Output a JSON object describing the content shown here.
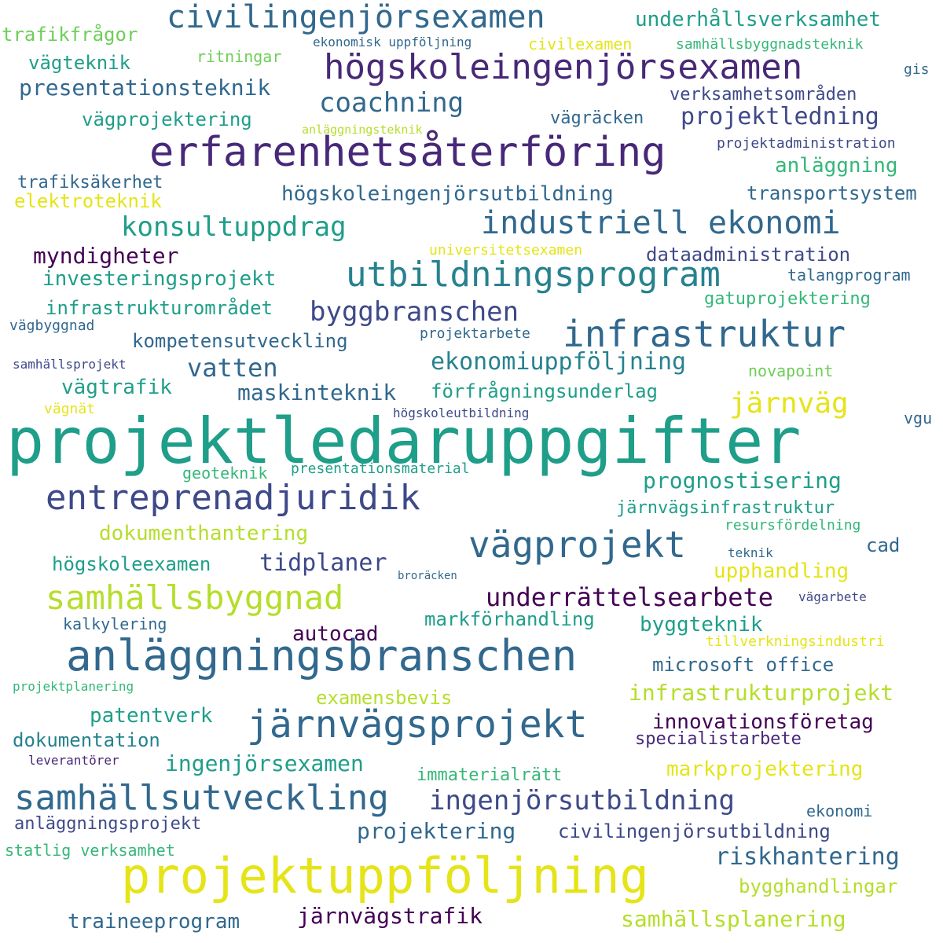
{
  "palette": {
    "dpurple": "#440154",
    "indigo": "#482878",
    "blue": "#3e4989",
    "slate": "#31688e",
    "teal": "#26828e",
    "cyan": "#1f9e89",
    "green": "#35b779",
    "lgreen": "#6ece58",
    "lime": "#b5de2b",
    "yellow": "#e5e419"
  },
  "words": [
    {
      "text": "projektledaruppgifter",
      "color": "cyan"
    },
    {
      "text": "anläggningsbranschen",
      "color": "slate"
    },
    {
      "text": "projektuppföljning",
      "color": "yellow"
    },
    {
      "text": "erfarenhetsåterföring",
      "color": "indigo"
    },
    {
      "text": "utbildningsprogram",
      "color": "teal"
    },
    {
      "text": "järnvägsprojekt",
      "color": "slate"
    },
    {
      "text": "entreprenadjuridik",
      "color": "blue"
    },
    {
      "text": "samhällsutveckling",
      "color": "slate"
    },
    {
      "text": "högskoleingenjörsexamen",
      "color": "indigo"
    },
    {
      "text": "vägprojekt",
      "color": "slate"
    },
    {
      "text": "infrastruktur",
      "color": "slate"
    },
    {
      "text": "industriell ekonomi",
      "color": "slate"
    },
    {
      "text": "samhällsbyggnad",
      "color": "lime"
    },
    {
      "text": "civilingenjörsexamen",
      "color": "slate"
    },
    {
      "text": "byggbranschen",
      "color": "blue"
    },
    {
      "text": "konsultuppdrag",
      "color": "cyan"
    },
    {
      "text": "coachning",
      "color": "slate"
    },
    {
      "text": "ingenjörsutbildning",
      "color": "blue"
    },
    {
      "text": "vatten",
      "color": "slate"
    },
    {
      "text": "underrättelsearbete",
      "color": "dpurple"
    },
    {
      "text": "järnväg",
      "color": "yellow"
    },
    {
      "text": "ekonomiuppföljning",
      "color": "teal"
    },
    {
      "text": "projektledning",
      "color": "blue"
    },
    {
      "text": "tidplaner",
      "color": "blue"
    },
    {
      "text": "maskinteknik",
      "color": "slate"
    },
    {
      "text": "prognostisering",
      "color": "cyan"
    },
    {
      "text": "riskhantering",
      "color": "slate"
    },
    {
      "text": "järnvägstrafik",
      "color": "dpurple"
    },
    {
      "text": "infrastrukturprojekt",
      "color": "lime"
    },
    {
      "text": "ingenjörsexamen",
      "color": "cyan"
    },
    {
      "text": "projektering",
      "color": "slate"
    },
    {
      "text": "samhällsplanering",
      "color": "lime"
    },
    {
      "text": "underhållsverksamhet",
      "color": "cyan"
    },
    {
      "text": "högskoleingenjörsutbildning",
      "color": "slate"
    },
    {
      "text": "presentationsteknik",
      "color": "slate"
    },
    {
      "text": "byggteknik",
      "color": "cyan"
    },
    {
      "text": "dokumenthantering",
      "color": "lime"
    },
    {
      "text": "patentverk",
      "color": "cyan"
    },
    {
      "text": "myndigheter",
      "color": "dpurple"
    },
    {
      "text": "innovationsföretag",
      "color": "dpurple"
    },
    {
      "text": "markprojektering",
      "color": "yellow"
    },
    {
      "text": "investeringsprojekt",
      "color": "cyan"
    },
    {
      "text": "dokumentation",
      "color": "teal"
    },
    {
      "text": "vägtrafik",
      "color": "cyan"
    },
    {
      "text": "civilingenjörsutbildning",
      "color": "blue"
    },
    {
      "text": "traineeprogram",
      "color": "slate"
    },
    {
      "text": "kompetensutveckling",
      "color": "slate"
    },
    {
      "text": "förfrågningsunderlag",
      "color": "cyan"
    },
    {
      "text": "infrastrukturområdet",
      "color": "cyan"
    },
    {
      "text": "markförhandling",
      "color": "cyan"
    },
    {
      "text": "microsoft office",
      "color": "slate"
    },
    {
      "text": "anläggningsprojekt",
      "color": "blue"
    },
    {
      "text": "examensbevis",
      "color": "lime"
    },
    {
      "text": "anläggning",
      "color": "green"
    },
    {
      "text": "vägprojektering",
      "color": "cyan"
    },
    {
      "text": "högskoleexamen",
      "color": "cyan"
    },
    {
      "text": "upphandling",
      "color": "yellow"
    },
    {
      "text": "bygghandlingar",
      "color": "lime"
    },
    {
      "text": "vägteknik",
      "color": "cyan"
    },
    {
      "text": "transportsystem",
      "color": "slate"
    },
    {
      "text": "specialistarbete",
      "color": "indigo"
    },
    {
      "text": "immaterialrätt",
      "color": "green"
    },
    {
      "text": "dataadministration",
      "color": "blue"
    },
    {
      "text": "järnvägsinfrastruktur",
      "color": "cyan"
    },
    {
      "text": "autocad",
      "color": "dpurple"
    },
    {
      "text": "trafikfrågor",
      "color": "lgreen"
    },
    {
      "text": "gatuprojektering",
      "color": "green"
    },
    {
      "text": "vägräcken",
      "color": "slate"
    },
    {
      "text": "elektroteknik",
      "color": "yellow"
    },
    {
      "text": "verksamhetsområden",
      "color": "blue"
    },
    {
      "text": "trafiksäkerhet",
      "color": "slate"
    },
    {
      "text": "statlig verksamhet",
      "color": "green"
    },
    {
      "text": "talangprogram",
      "color": "slate"
    },
    {
      "text": "kalkylering",
      "color": "slate"
    },
    {
      "text": "geoteknik",
      "color": "green"
    },
    {
      "text": "cad",
      "color": "slate"
    },
    {
      "text": "ekonomi",
      "color": "slate"
    },
    {
      "text": "civilexamen",
      "color": "yellow"
    },
    {
      "text": "samhällsbyggnadsteknik",
      "color": "green"
    },
    {
      "text": "ritningar",
      "color": "lgreen"
    },
    {
      "text": "universitetsexamen",
      "color": "yellow"
    },
    {
      "text": "novapoint",
      "color": "lgreen"
    },
    {
      "text": "presentationsmaterial",
      "color": "cyan"
    },
    {
      "text": "tillverkningsindustri",
      "color": "yellow"
    },
    {
      "text": "projektadministration",
      "color": "blue"
    },
    {
      "text": "resursfördelning",
      "color": "green"
    },
    {
      "text": "projektplanering",
      "color": "green"
    },
    {
      "text": "projektarbete",
      "color": "slate"
    },
    {
      "text": "samhällsprojekt",
      "color": "blue"
    },
    {
      "text": "vägbyggnad",
      "color": "slate"
    },
    {
      "text": "vägnät",
      "color": "yellow"
    },
    {
      "text": "högskoleutbildning",
      "color": "blue"
    },
    {
      "text": "leverantörer",
      "color": "indigo"
    },
    {
      "text": "vägarbete",
      "color": "blue"
    },
    {
      "text": "teknik",
      "color": "slate"
    },
    {
      "text": "ekonomisk uppföljning",
      "color": "slate"
    },
    {
      "text": "anläggningsteknik",
      "color": "lime"
    },
    {
      "text": "gis",
      "color": "slate"
    },
    {
      "text": "vgu",
      "color": "slate"
    },
    {
      "text": "broräcken",
      "color": "slate"
    }
  ]
}
